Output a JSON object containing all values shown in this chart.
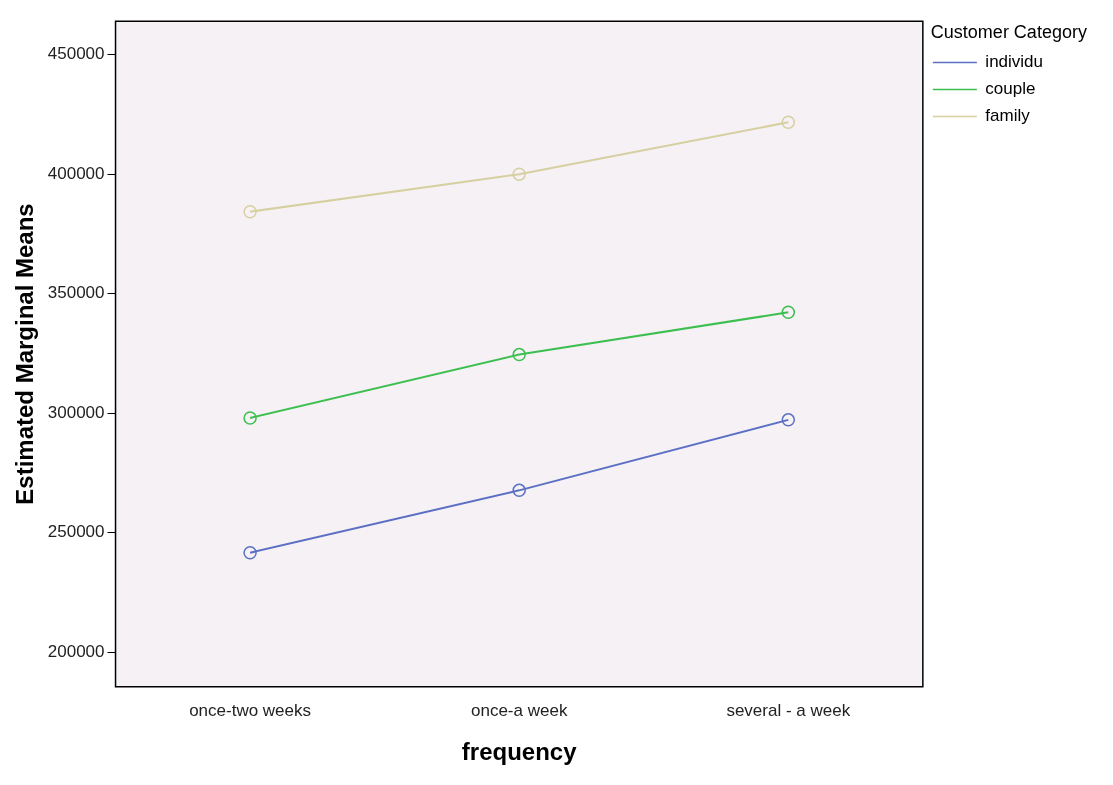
{
  "chart_data": {
    "type": "line",
    "xlabel": "frequency",
    "ylabel": "Estimated Marginal Means",
    "legend_title": "Customer Category",
    "categories": [
      "once-two weeks",
      "once-a week",
      "several - a week"
    ],
    "series": [
      {
        "name": "individu",
        "color": "#5b6fc4",
        "values": [
          241600,
          267700,
          297200
        ]
      },
      {
        "name": "couple",
        "color": "#3dbf50",
        "values": [
          298000,
          324500,
          342200
        ]
      },
      {
        "name": "family",
        "color": "#d6d0a0",
        "values": [
          384300,
          400000,
          421700
        ]
      }
    ],
    "ylim": [
      185500,
      464000
    ],
    "yticks": [
      200000,
      250000,
      300000,
      350000,
      400000,
      450000
    ],
    "grid": false,
    "legend": "top right",
    "marker": "circle"
  }
}
